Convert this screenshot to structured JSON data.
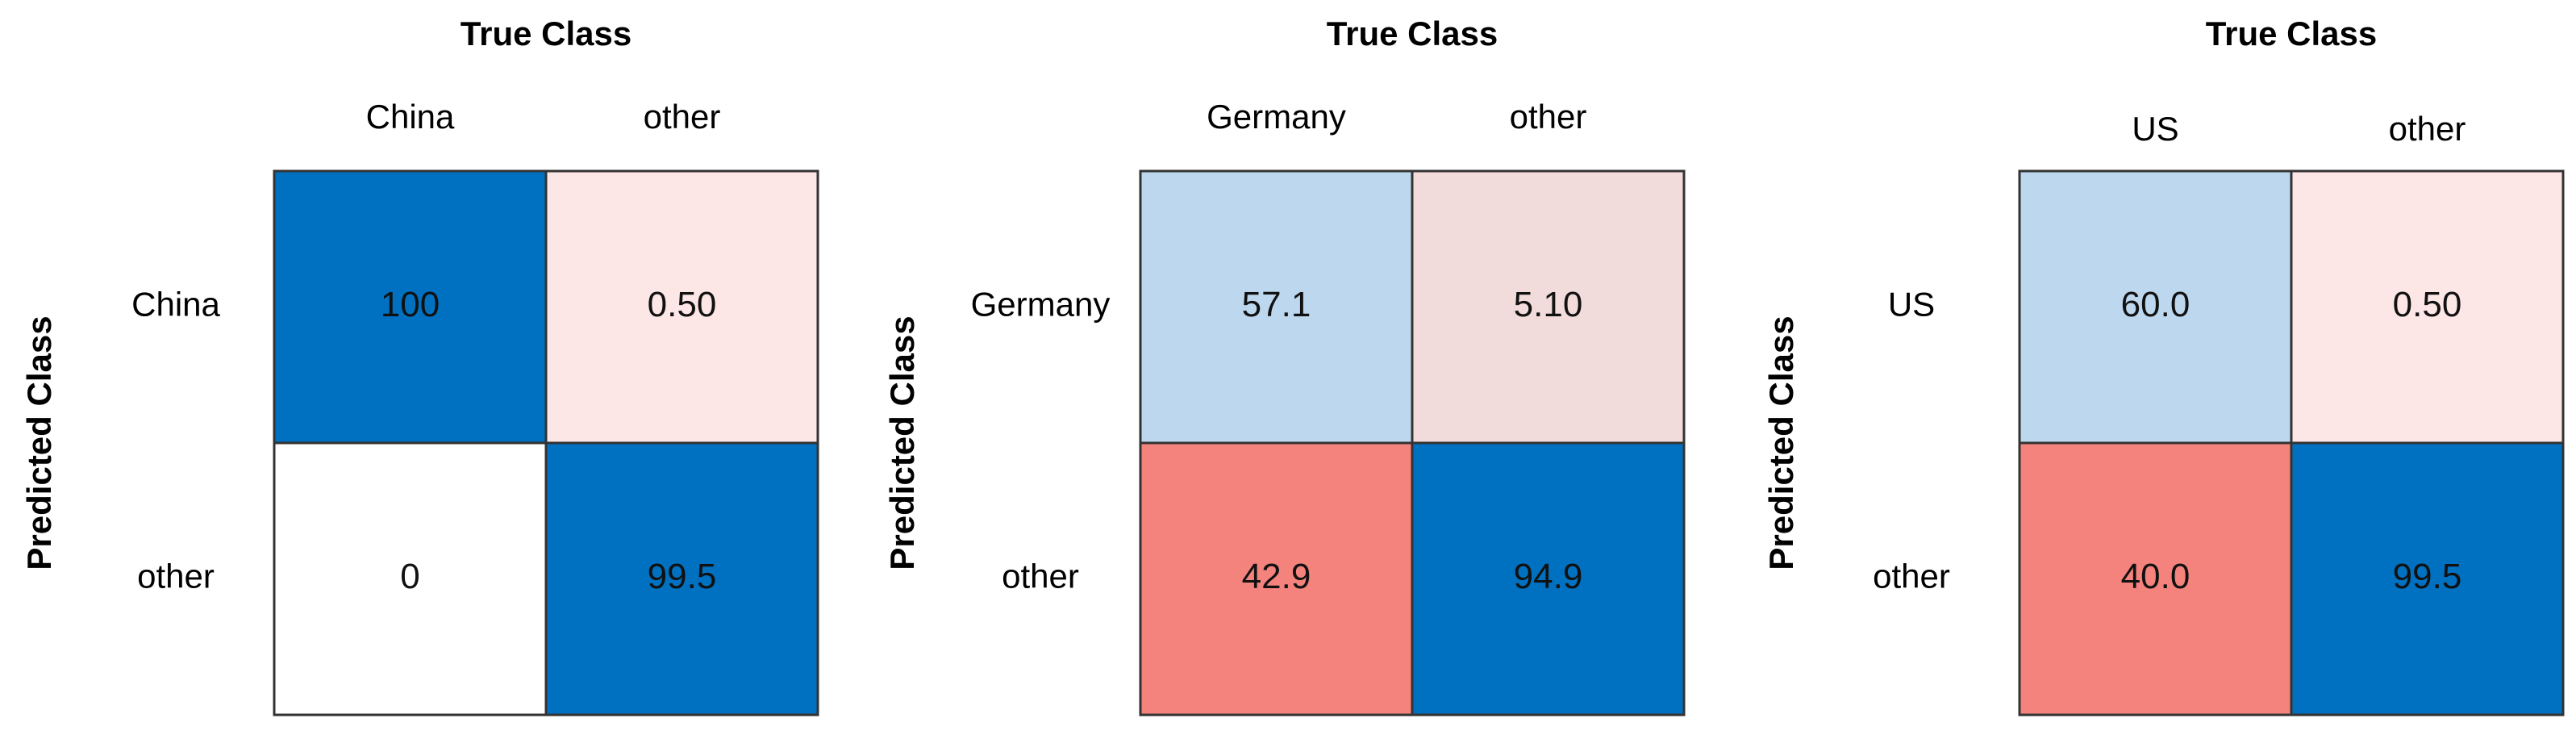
{
  "chart_data": [
    {
      "type": "heatmap",
      "xlabel": "True Class",
      "ylabel": "Predicted Class",
      "categories": [
        "China",
        "other"
      ],
      "values": [
        [
          100,
          0.5
        ],
        [
          0,
          99.5
        ]
      ],
      "labels": [
        [
          "100",
          "0.50"
        ],
        [
          "0",
          "99.5"
        ]
      ],
      "colors": [
        [
          "#0070c0",
          "#fde6e6"
        ],
        [
          "#ffffff",
          "#0070c0"
        ]
      ]
    },
    {
      "type": "heatmap",
      "xlabel": "True Class",
      "ylabel": "Predicted Class",
      "categories": [
        "Germany",
        "other"
      ],
      "values": [
        [
          57.1,
          5.1
        ],
        [
          42.9,
          94.9
        ]
      ],
      "labels": [
        [
          "57.1",
          "5.10"
        ],
        [
          "42.9",
          "94.9"
        ]
      ],
      "colors": [
        [
          "#bdd7ee",
          "#f2dcdb"
        ],
        [
          "#f4837d",
          "#0070c0"
        ]
      ]
    },
    {
      "type": "heatmap",
      "xlabel": "True Class",
      "ylabel": "Predicted Class",
      "categories": [
        "US",
        "other"
      ],
      "values": [
        [
          60.0,
          0.5
        ],
        [
          40.0,
          99.5
        ]
      ],
      "labels": [
        [
          "60.0",
          "0.50"
        ],
        [
          "40.0",
          "99.5"
        ]
      ],
      "colors": [
        [
          "#bdd7ee",
          "#fde6e6"
        ],
        [
          "#f4837d",
          "#0070c0"
        ]
      ]
    }
  ]
}
